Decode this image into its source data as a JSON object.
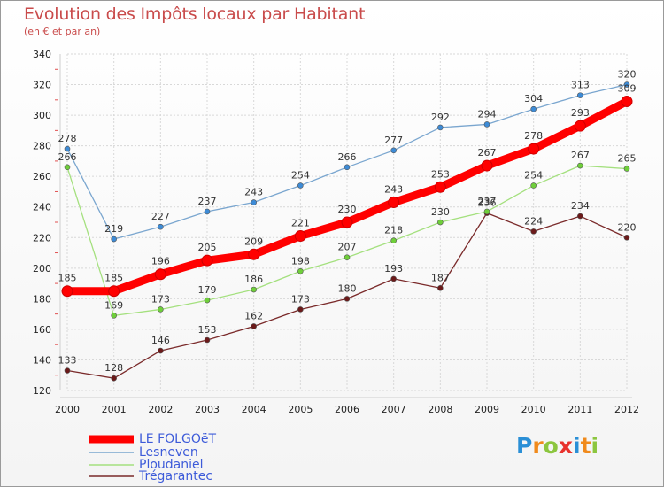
{
  "title": "Evolution des Impôts locaux par Habitant",
  "subtitle": "(en € et par an)",
  "logo": {
    "letters": [
      "P",
      "r",
      "o",
      "x",
      "i",
      "t",
      "i"
    ],
    "colors": [
      "#2a8fd6",
      "#f08a1c",
      "#8cc63f",
      "#e8322d",
      "#2a8fd6",
      "#f08a1c",
      "#8cc63f"
    ]
  },
  "chart_data": {
    "type": "line",
    "title": "Evolution des Impôts locaux par Habitant",
    "subtitle": "(en € et par an)",
    "xlabel": "",
    "ylabel": "",
    "x": [
      "2000",
      "2001",
      "2002",
      "2003",
      "2004",
      "2005",
      "2006",
      "2007",
      "2008",
      "2009",
      "2010",
      "2011",
      "2012"
    ],
    "ylim": [
      120,
      340
    ],
    "yticks": [
      "120",
      "140",
      "160",
      "180",
      "200",
      "220",
      "240",
      "260",
      "280",
      "300",
      "320",
      "340"
    ],
    "grid": true,
    "legend_position": "bottom-left",
    "series": [
      {
        "name": "LE FOLGOëT",
        "values": [
          185,
          185,
          196,
          205,
          209,
          221,
          230,
          243,
          253,
          267,
          278,
          293,
          309
        ],
        "labels": [
          "185",
          "185",
          "196",
          "205",
          "209",
          "221",
          "230",
          "243",
          "253",
          "267",
          "278",
          "293",
          "309"
        ],
        "color": "#ff0000",
        "marker": "#ff0000"
      },
      {
        "name": "Lesneven",
        "values": [
          278,
          219,
          227,
          237,
          243,
          254,
          266,
          277,
          292,
          294,
          304,
          313,
          320
        ],
        "labels": [
          "278",
          "219",
          "227",
          "237",
          "243",
          "254",
          "266",
          "277",
          "292",
          "294",
          "304",
          "313",
          "320"
        ],
        "color": "#7aa6cf",
        "marker": "#3d8bd6"
      },
      {
        "name": "Ploudaniel",
        "values": [
          266,
          169,
          173,
          179,
          186,
          198,
          207,
          218,
          230,
          237,
          254,
          267,
          265
        ],
        "labels": [
          "266",
          "169",
          "173",
          "179",
          "186",
          "198",
          "207",
          "218",
          "230",
          "237",
          "254",
          "267",
          "265"
        ],
        "color": "#a4e07e",
        "marker": "#6fcf3a"
      },
      {
        "name": "Trégarantec",
        "values": [
          133,
          128,
          146,
          153,
          162,
          173,
          180,
          193,
          187,
          236,
          224,
          234,
          220
        ],
        "labels": [
          "133",
          "128",
          "146",
          "153",
          "162",
          "173",
          "180",
          "193",
          "187",
          "236",
          "224",
          "234",
          "220"
        ],
        "color": "#7a2a2a",
        "marker": "#6b1a1a"
      }
    ]
  }
}
